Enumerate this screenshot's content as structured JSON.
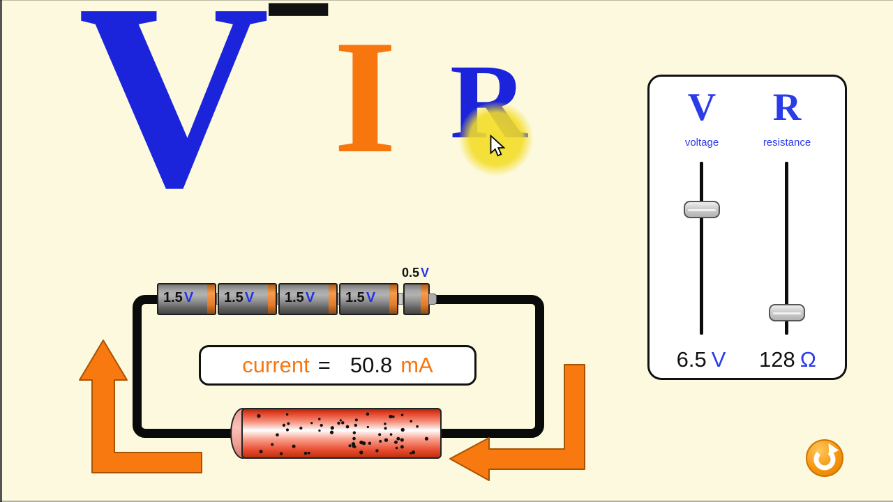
{
  "formula": {
    "v": "V",
    "equals": "=",
    "i": "I",
    "r": "R"
  },
  "panel": {
    "voltage_symbol": "V",
    "voltage_label": "voltage",
    "resistance_symbol": "R",
    "resistance_label": "resistance",
    "voltage_value": "6.5",
    "voltage_unit": "V",
    "resistance_value": "128",
    "resistance_unit": "Ω"
  },
  "circuit": {
    "batteries": [
      "1.5",
      "1.5",
      "1.5",
      "1.5"
    ],
    "battery_unit": "V",
    "half_battery_value": "0.5",
    "half_battery_unit": "V",
    "current_label": "current",
    "current_equals": "=",
    "current_value": "50.8",
    "current_unit": "mA"
  },
  "colors": {
    "background": "#FCF9DE",
    "formula_blue": "#1B24DB",
    "ui_blue": "#2B3BE8",
    "orange": "#F8760E",
    "arrow_orange": "#F8790F",
    "wire_black": "#0A0A0A",
    "highlight_yellow": "#F3DD26",
    "reset_orange": "#F6960D"
  }
}
